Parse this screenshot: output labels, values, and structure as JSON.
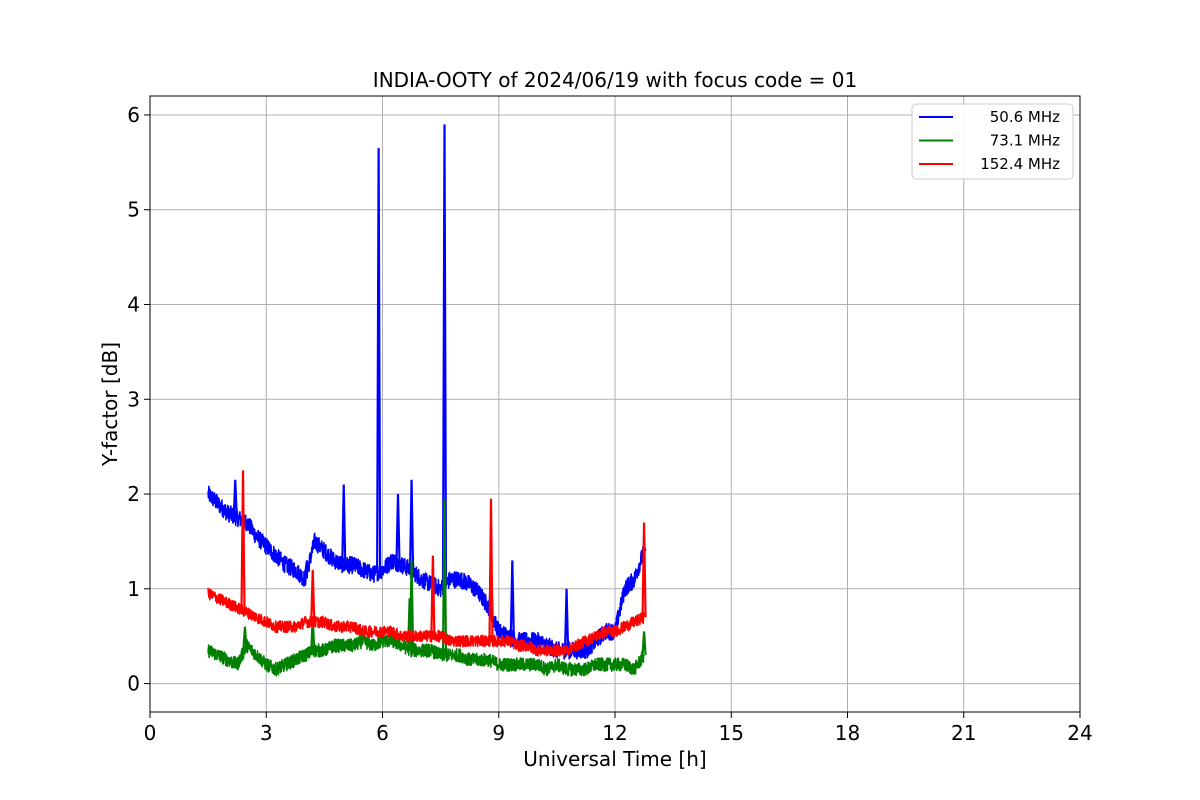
{
  "chart_data": {
    "type": "line",
    "title": "INDIA-OOTY of 2024/06/19 with focus code = 01",
    "xlabel": "Universal Time [h]",
    "ylabel": "Y-factor [dB]",
    "xlim": [
      0,
      24
    ],
    "ylim": [
      -0.3,
      6.2
    ],
    "xticks": [
      0,
      3,
      6,
      9,
      12,
      15,
      18,
      21,
      24
    ],
    "yticks": [
      0,
      1,
      2,
      3,
      4,
      5,
      6
    ],
    "xtick_labels": [
      "0",
      "3",
      "6",
      "9",
      "12",
      "15",
      "18",
      "21",
      "24"
    ],
    "ytick_labels": [
      "0",
      "1",
      "2",
      "3",
      "4",
      "5",
      "6"
    ],
    "grid": true,
    "legend_position": "top-right",
    "series": [
      {
        "name": "50.6 MHz",
        "color": "#0000ff",
        "x": [
          1.5,
          1.75,
          2.0,
          2.25,
          2.5,
          2.75,
          3.0,
          3.25,
          3.5,
          3.75,
          4.0,
          4.25,
          4.5,
          4.75,
          5.0,
          5.25,
          5.5,
          5.75,
          6.0,
          6.25,
          6.5,
          6.75,
          7.0,
          7.25,
          7.5,
          7.75,
          8.0,
          8.25,
          8.5,
          8.75,
          9.0,
          9.25,
          9.5,
          9.75,
          10.0,
          10.25,
          10.5,
          10.75,
          11.0,
          11.25,
          11.5,
          11.75,
          12.0,
          12.25,
          12.5,
          12.75
        ],
        "y": [
          2.0,
          1.9,
          1.8,
          1.75,
          1.7,
          1.55,
          1.45,
          1.35,
          1.25,
          1.2,
          1.1,
          1.5,
          1.4,
          1.3,
          1.25,
          1.25,
          1.2,
          1.15,
          1.2,
          1.3,
          1.25,
          1.2,
          1.1,
          1.05,
          1.0,
          1.1,
          1.1,
          1.05,
          0.95,
          0.8,
          0.55,
          0.5,
          0.45,
          0.45,
          0.45,
          0.4,
          0.35,
          0.35,
          0.35,
          0.35,
          0.45,
          0.55,
          0.55,
          1.0,
          1.1,
          1.4
        ],
        "spikes": [
          [
            2.2,
            2.15
          ],
          [
            4.05,
            1.3
          ],
          [
            5.0,
            2.1
          ],
          [
            5.9,
            5.65
          ],
          [
            6.4,
            2.0
          ],
          [
            6.75,
            2.15
          ],
          [
            7.6,
            5.9
          ],
          [
            8.8,
            1.3
          ],
          [
            9.35,
            1.3
          ],
          [
            10.75,
            1.0
          ],
          [
            12.75,
            1.45
          ]
        ]
      },
      {
        "name": "73.1 MHz",
        "color": "#008000",
        "x": [
          1.5,
          1.75,
          2.0,
          2.25,
          2.5,
          2.75,
          3.0,
          3.25,
          3.5,
          3.75,
          4.0,
          4.25,
          4.5,
          4.75,
          5.0,
          5.25,
          5.5,
          5.75,
          6.0,
          6.25,
          6.5,
          6.75,
          7.0,
          7.25,
          7.5,
          7.75,
          8.0,
          8.25,
          8.5,
          8.75,
          9.0,
          9.25,
          9.5,
          9.75,
          10.0,
          10.25,
          10.5,
          10.75,
          11.0,
          11.25,
          11.5,
          11.75,
          12.0,
          12.25,
          12.5,
          12.75
        ],
        "y": [
          0.35,
          0.3,
          0.25,
          0.2,
          0.4,
          0.3,
          0.2,
          0.15,
          0.2,
          0.25,
          0.3,
          0.35,
          0.35,
          0.4,
          0.4,
          0.4,
          0.45,
          0.4,
          0.45,
          0.45,
          0.4,
          0.35,
          0.35,
          0.35,
          0.3,
          0.3,
          0.3,
          0.25,
          0.25,
          0.25,
          0.2,
          0.2,
          0.2,
          0.2,
          0.2,
          0.15,
          0.2,
          0.15,
          0.15,
          0.15,
          0.2,
          0.2,
          0.2,
          0.2,
          0.15,
          0.3
        ],
        "spikes": [
          [
            2.45,
            0.6
          ],
          [
            4.2,
            0.7
          ],
          [
            6.7,
            0.9
          ],
          [
            6.75,
            1.3
          ],
          [
            7.6,
            1.95
          ],
          [
            12.75,
            0.55
          ]
        ]
      },
      {
        "name": "152.4 MHz",
        "color": "#ff0000",
        "x": [
          1.5,
          1.75,
          2.0,
          2.25,
          2.5,
          2.75,
          3.0,
          3.25,
          3.5,
          3.75,
          4.0,
          4.25,
          4.5,
          4.75,
          5.0,
          5.25,
          5.5,
          5.75,
          6.0,
          6.25,
          6.5,
          6.75,
          7.0,
          7.25,
          7.5,
          7.75,
          8.0,
          8.25,
          8.5,
          8.75,
          9.0,
          9.25,
          9.5,
          9.75,
          10.0,
          10.25,
          10.5,
          10.75,
          11.0,
          11.25,
          11.5,
          11.75,
          12.0,
          12.25,
          12.5,
          12.75
        ],
        "y": [
          0.95,
          0.9,
          0.85,
          0.8,
          0.75,
          0.7,
          0.65,
          0.6,
          0.6,
          0.6,
          0.65,
          0.65,
          0.65,
          0.6,
          0.6,
          0.6,
          0.55,
          0.55,
          0.55,
          0.55,
          0.5,
          0.5,
          0.5,
          0.5,
          0.5,
          0.45,
          0.45,
          0.45,
          0.45,
          0.45,
          0.45,
          0.45,
          0.4,
          0.4,
          0.35,
          0.35,
          0.35,
          0.35,
          0.4,
          0.45,
          0.5,
          0.55,
          0.55,
          0.6,
          0.65,
          0.7
        ],
        "spikes": [
          [
            2.4,
            2.25
          ],
          [
            4.2,
            1.2
          ],
          [
            7.3,
            1.35
          ],
          [
            8.8,
            1.95
          ],
          [
            12.75,
            1.7
          ]
        ]
      }
    ]
  }
}
